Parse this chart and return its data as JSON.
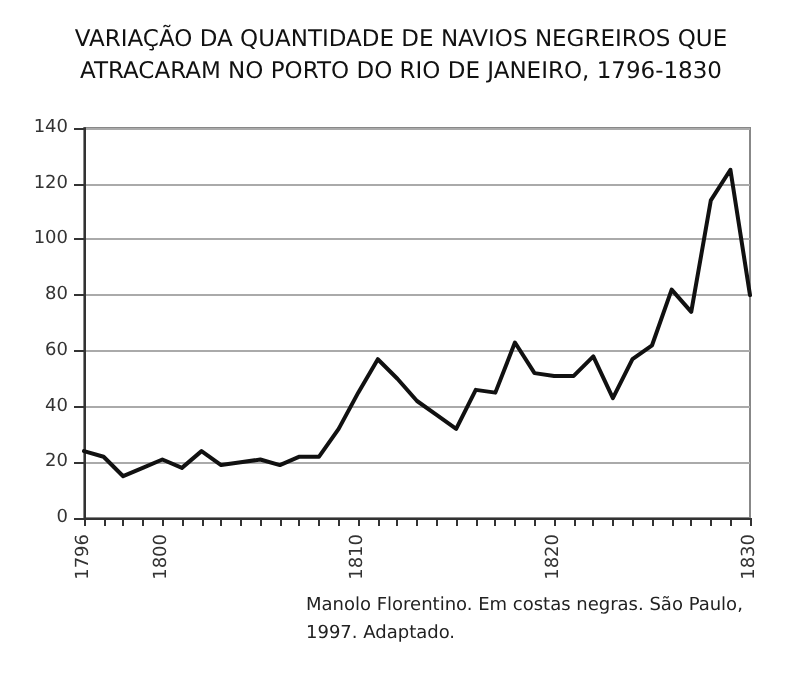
{
  "chart_data": {
    "type": "line",
    "title": "VARIAÇÃO DA QUANTIDADE DE NAVIOS NEGREIROS QUE\nATRACARAM NO PORTO DO RIO DE JANEIRO, 1796-1830",
    "x": [
      1796,
      1797,
      1798,
      1799,
      1800,
      1801,
      1802,
      1803,
      1804,
      1805,
      1806,
      1807,
      1808,
      1809,
      1810,
      1811,
      1812,
      1813,
      1814,
      1815,
      1816,
      1817,
      1818,
      1819,
      1820,
      1821,
      1822,
      1823,
      1824,
      1825,
      1826,
      1827,
      1828,
      1829,
      1830
    ],
    "series": [
      {
        "color": "#111111",
        "values": [
          24,
          22,
          15,
          18,
          21,
          18,
          24,
          19,
          20,
          21,
          19,
          22,
          22,
          32,
          45,
          57,
          50,
          42,
          37,
          32,
          46,
          45,
          63,
          52,
          51,
          51,
          58,
          43,
          57,
          62,
          82,
          74,
          114,
          125,
          80
        ]
      }
    ],
    "xlim": [
      1796,
      1830
    ],
    "xticks": [
      1796,
      {
        "value": 1797,
        "label": null
      },
      {
        "value": 1798,
        "label": null
      },
      {
        "value": 1799,
        "label": null
      },
      1800,
      {
        "value": 1801,
        "label": null
      },
      {
        "value": 1802,
        "label": null
      },
      {
        "value": 1803,
        "label": null
      },
      {
        "value": 1804,
        "label": null
      },
      {
        "value": 1805,
        "label": null
      },
      {
        "value": 1806,
        "label": null
      },
      {
        "value": 1807,
        "label": null
      },
      {
        "value": 1808,
        "label": null
      },
      {
        "value": 1809,
        "label": null
      },
      1810,
      {
        "value": 1811,
        "label": null
      },
      {
        "value": 1812,
        "label": null
      },
      {
        "value": 1813,
        "label": null
      },
      {
        "value": 1814,
        "label": null
      },
      {
        "value": 1815,
        "label": null
      },
      {
        "value": 1816,
        "label": null
      },
      {
        "value": 1817,
        "label": null
      },
      {
        "value": 1818,
        "label": null
      },
      {
        "value": 1819,
        "label": null
      },
      1820,
      {
        "value": 1821,
        "label": null
      },
      {
        "value": 1822,
        "label": null
      },
      {
        "value": 1823,
        "label": null
      },
      {
        "value": 1824,
        "label": null
      },
      {
        "value": 1825,
        "label": null
      },
      {
        "value": 1826,
        "label": null
      },
      {
        "value": 1827,
        "label": null
      },
      {
        "value": 1828,
        "label": null
      },
      {
        "value": 1829,
        "label": null
      },
      1830
    ],
    "ylim": [
      0,
      140
    ],
    "yticks": [
      0,
      20,
      40,
      60,
      80,
      100,
      120,
      140
    ],
    "grid": "y",
    "marker": "none",
    "line_style": "solid",
    "annotations": [
      "Manolo Florentino. Em costas negras. São Paulo, 1997. Adaptado."
    ]
  }
}
